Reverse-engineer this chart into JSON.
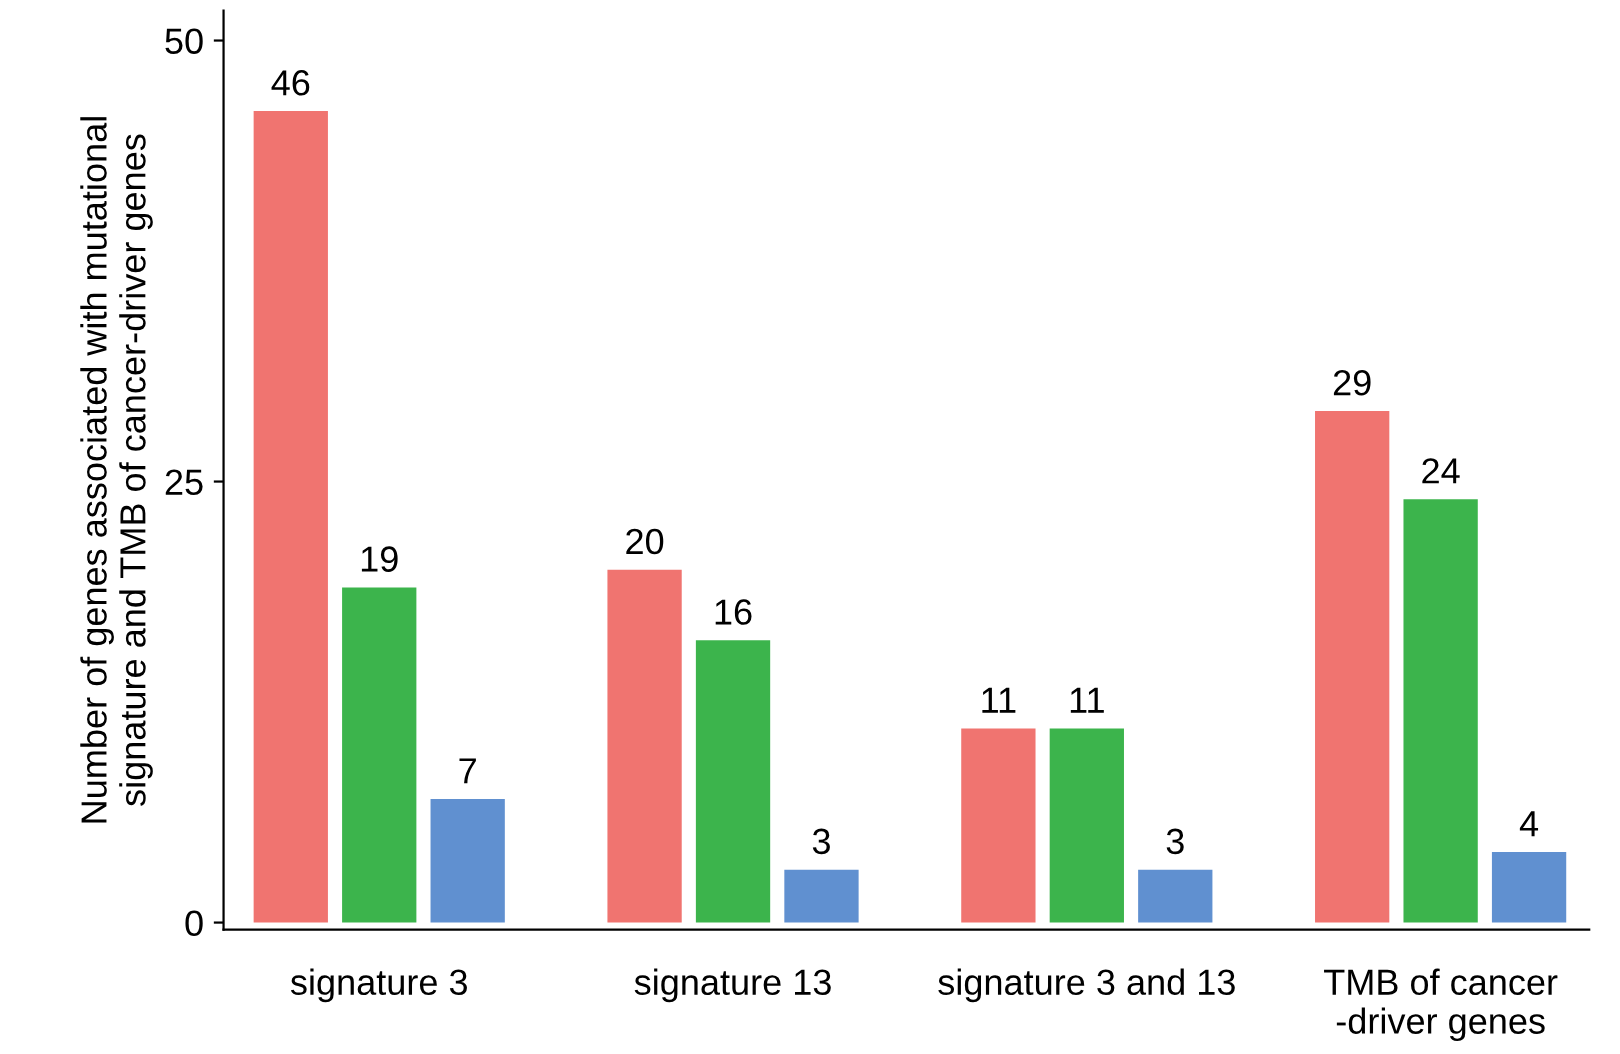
{
  "chart_data": {
    "type": "bar",
    "ylabel": "Number of genes associated with mutational\nsignature and TMB of cancer-driver genes",
    "categories": [
      "signature 3",
      "signature 13",
      "signature 3 and 13",
      "TMB of cancer\n-driver genes"
    ],
    "series": [
      {
        "color": "#f07470",
        "values": [
          46,
          20,
          11,
          29
        ]
      },
      {
        "color": "#3cb44c",
        "values": [
          19,
          16,
          11,
          24
        ]
      },
      {
        "color": "#6090d0",
        "values": [
          7,
          3,
          3,
          4
        ]
      }
    ],
    "ylim": [
      -0.4,
      51.7
    ],
    "yticks": [
      0,
      25,
      50
    ],
    "data_labels": true
  }
}
